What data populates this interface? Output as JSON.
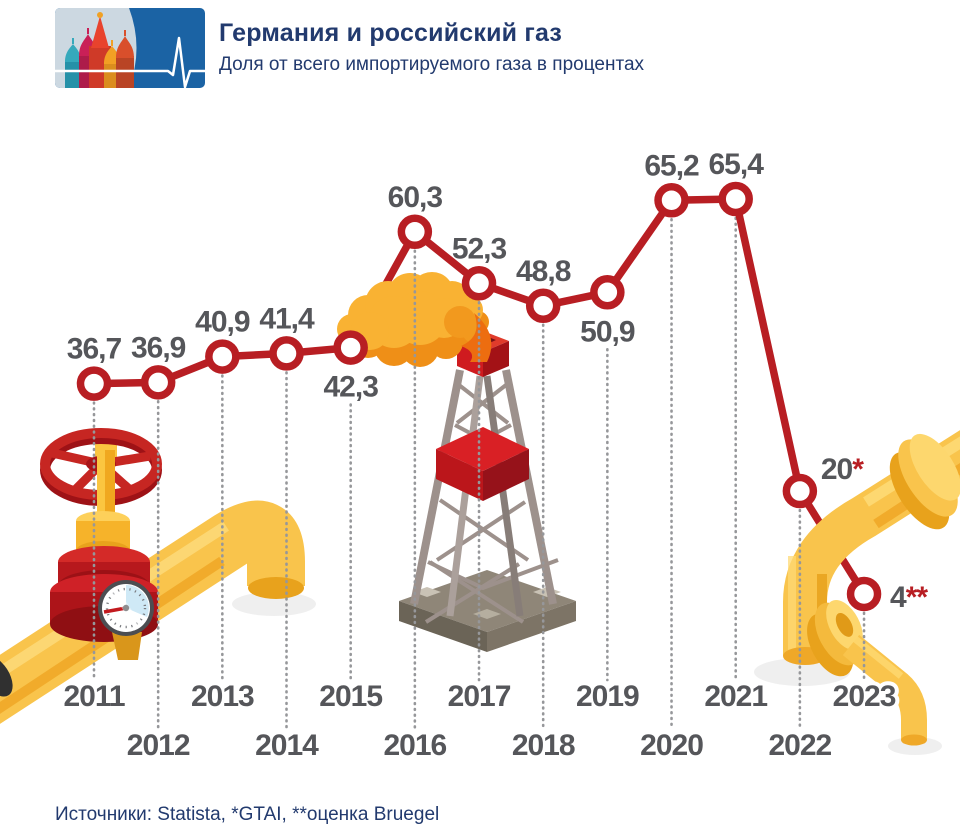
{
  "header": {
    "title": "Германия и российский газ",
    "subtitle": "Доля от всего импортируемого газа в процентах",
    "logo": {
      "left_motif": "st-basils-cathedral",
      "right_motif": "pulse-line",
      "bg_left": "#ccd8e1",
      "bg_right": "#1b63a4"
    }
  },
  "chart_data": {
    "type": "line",
    "title": "Германия и российский газ",
    "subtitle": "Доля от всего импортируемого газа в процентах",
    "unit": "percent",
    "x": [
      2011,
      2012,
      2013,
      2014,
      2015,
      2016,
      2017,
      2018,
      2019,
      2020,
      2021,
      2022,
      2023
    ],
    "values": [
      36.7,
      36.9,
      40.9,
      41.4,
      42.3,
      60.3,
      52.3,
      48.8,
      50.9,
      65.2,
      65.4,
      20,
      4
    ],
    "point_labels": [
      {
        "text": "36,7",
        "suffix": "",
        "pos": "above"
      },
      {
        "text": "36,9",
        "suffix": "",
        "pos": "above"
      },
      {
        "text": "40,9",
        "suffix": "",
        "pos": "above"
      },
      {
        "text": "41,4",
        "suffix": "",
        "pos": "above"
      },
      {
        "text": "42,3",
        "suffix": "",
        "pos": "below"
      },
      {
        "text": "60,3",
        "suffix": "",
        "pos": "above"
      },
      {
        "text": "52,3",
        "suffix": "",
        "pos": "above"
      },
      {
        "text": "48,8",
        "suffix": "",
        "pos": "above"
      },
      {
        "text": "50,9",
        "suffix": "",
        "pos": "below"
      },
      {
        "text": "65,2",
        "suffix": "",
        "pos": "above"
      },
      {
        "text": "65,4",
        "suffix": "",
        "pos": "above"
      },
      {
        "text": "20",
        "suffix": "*",
        "pos": "right-up"
      },
      {
        "text": "4",
        "suffix": "**",
        "pos": "right"
      }
    ],
    "ylim": [
      0,
      70
    ],
    "grid": "dotted-vertical",
    "legend": "none",
    "marker_style": "open-circle",
    "line_color": "#b81e23",
    "label_color": "#55565a",
    "grid_color": "#96979a",
    "footnote_marks": {
      "single_asterisk": "GTAI",
      "double_asterisk": "оценка Bruegel"
    }
  },
  "footer": {
    "source": "Источники: Statista, *GTAI, **оценка Bruegel"
  },
  "illustrations": [
    {
      "name": "pipeline-valve-illustration",
      "desc": "yellow gas pipe with red valve wheel and pressure gauge"
    },
    {
      "name": "gas-derrick-illustration",
      "desc": "grey drilling derrick with red crown"
    },
    {
      "name": "gas-flare-illustration",
      "desc": "orange gas flare cloud"
    },
    {
      "name": "broken-pipeline-illustration",
      "desc": "disconnected yellow pipeline"
    }
  ]
}
